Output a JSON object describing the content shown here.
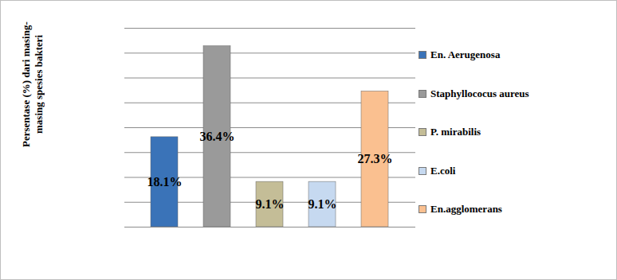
{
  "chart_data": {
    "type": "bar",
    "y_label": "Persentase (%) dari masing-masing spesies bakteri",
    "categories": [
      "En. Aerugenosa",
      "Staphyllococus aureus",
      "P. mirabilis",
      "E.coli",
      "En.agglomerans"
    ],
    "values": [
      18.1,
      36.4,
      9.1,
      9.1,
      27.3
    ],
    "value_labels": [
      "18.1%",
      "36.4%",
      "9.1%",
      "9.1%",
      "27.3%"
    ],
    "colors": [
      "#3a73b8",
      "#9a9a9a",
      "#c4bd97",
      "#c6d9f0",
      "#fac090"
    ],
    "ylim": [
      0,
      40
    ],
    "yticks": [
      0,
      5,
      10,
      15,
      20,
      25,
      30,
      35,
      40
    ],
    "grid": true,
    "legend": "right",
    "data_labels": true,
    "tick_labels": false
  }
}
